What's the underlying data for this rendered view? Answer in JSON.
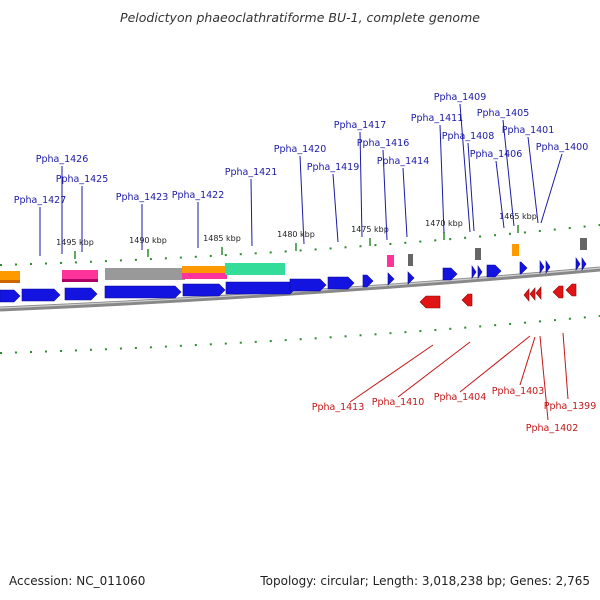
{
  "title": "Pelodictyon phaeoclathratiforme BU-1, complete genome",
  "footer": {
    "accession": "Accession: NC_011060",
    "summary": "Topology: circular; Length: 3,018,238 bp; Genes: 2,765"
  },
  "colors": {
    "forward_gene": "#1414e0",
    "reverse_gene": "#e01414",
    "forward_label": "#1a1aa6",
    "reverse_label": "#c41717",
    "backbone": "#9a9a9a",
    "tick": "#2e8b2e",
    "rna": "#ff9900",
    "pink_feature": "#ff3399",
    "teal_feature": "#33dd99",
    "grey_feature": "#999999"
  },
  "kbp_ticks": [
    "1495 kbp",
    "1490 kbp",
    "1485 kbp",
    "1480 kbp",
    "1475 kbp",
    "1470 kbp",
    "1465 kbp"
  ],
  "forward_labels": [
    "Ppha_1427",
    "Ppha_1426",
    "Ppha_1425",
    "Ppha_1423",
    "Ppha_1422",
    "Ppha_1421",
    "Ppha_1420",
    "Ppha_1419",
    "Ppha_1417",
    "Ppha_1416",
    "Ppha_1414",
    "Ppha_1411",
    "Ppha_1409",
    "Ppha_1408",
    "Ppha_1406",
    "Ppha_1405",
    "Ppha_1401",
    "Ppha_1400"
  ],
  "reverse_labels": [
    "Ppha_1413",
    "Ppha_1410",
    "Ppha_1404",
    "Ppha_1403",
    "Ppha_1402",
    "Ppha_1399"
  ]
}
